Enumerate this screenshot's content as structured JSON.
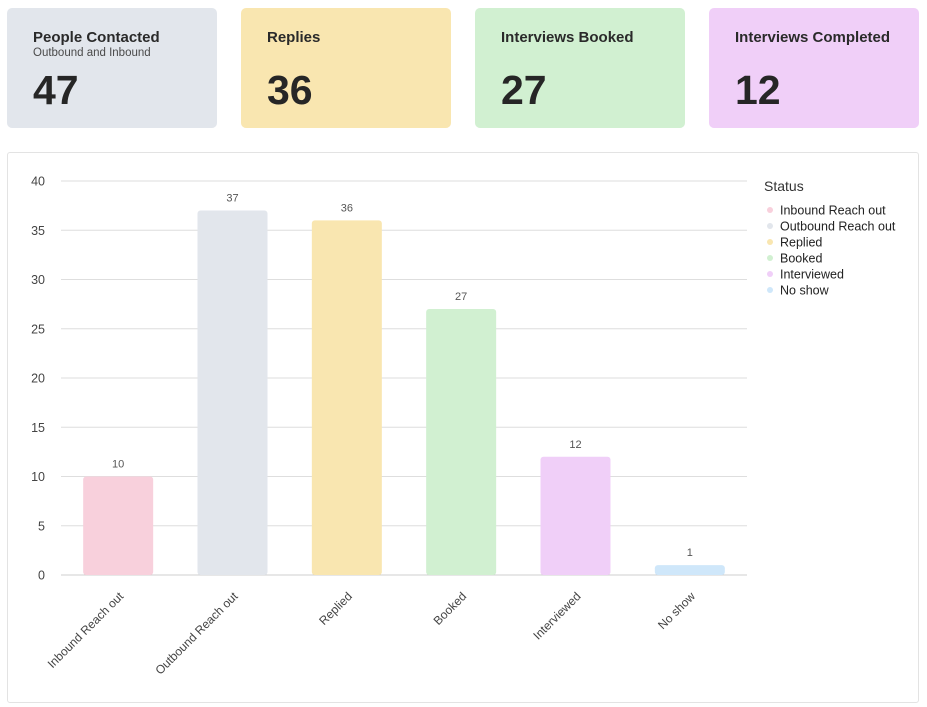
{
  "cards": [
    {
      "title": "People Contacted",
      "subtitle": "Outbound and Inbound",
      "value": "47",
      "color": "#e2e6ec"
    },
    {
      "title": "Replies",
      "subtitle": "",
      "value": "36",
      "color": "#f9e6b0"
    },
    {
      "title": "Interviews Booked",
      "subtitle": "",
      "value": "27",
      "color": "#d1f0d1"
    },
    {
      "title": "Interviews Completed",
      "subtitle": "",
      "value": "12",
      "color": "#f0cff8"
    }
  ],
  "chart_data": {
    "type": "bar",
    "categories": [
      "Inbound Reach out",
      "Outbound Reach out",
      "Replied",
      "Booked",
      "Interviewed",
      "No show"
    ],
    "values": [
      10,
      37,
      36,
      27,
      12,
      1
    ],
    "colors": [
      "#f8d0dc",
      "#e2e6ec",
      "#f9e6b0",
      "#d1f0d1",
      "#f0cff8",
      "#cfe7fa"
    ],
    "ylim": [
      0,
      40
    ],
    "yticks": [
      0,
      5,
      10,
      15,
      20,
      25,
      30,
      35,
      40
    ],
    "grid": true,
    "data_labels": true,
    "legend": {
      "title": "Status",
      "position": "right",
      "items": [
        "Inbound Reach out",
        "Outbound Reach out",
        "Replied",
        "Booked",
        "Interviewed",
        "No show"
      ]
    }
  }
}
